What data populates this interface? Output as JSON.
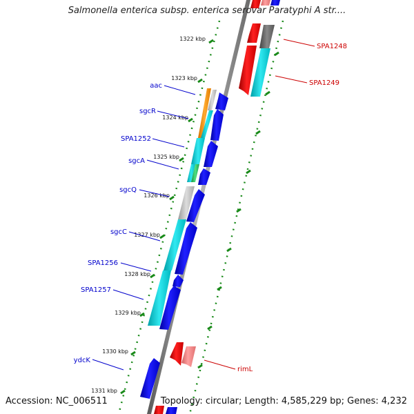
{
  "title": "Salmonella enterica subsp. enterica serovar Paratyphi A str....",
  "accession": "Accession: NC_006511",
  "topology": "Topology: circular; Length: 4,585,229 bp; Genes: 4,232",
  "colors": {
    "forward_gene": "#0000ee",
    "reverse_gene": "#ee0000",
    "rna_gene": "#ff8a80",
    "cds_cyan": "#00c8d0",
    "cds_gray": "#bdbdbd",
    "cds_dark_gray": "#666666",
    "cds_orange": "#ff8c00",
    "cds_green": "#22c55e",
    "backbone": "#8a8a8a",
    "tick_marks": "#1a8a1a",
    "label_blue": "#0000cc",
    "label_red": "#cc0000"
  },
  "ticks": [
    {
      "label": "1322 kbp"
    },
    {
      "label": "1323 kbp"
    },
    {
      "label": "1324 kbp"
    },
    {
      "label": "1325 kbp"
    },
    {
      "label": "1326 kbp"
    },
    {
      "label": "1327 kbp"
    },
    {
      "label": "1328 kbp"
    },
    {
      "label": "1329 kbp"
    },
    {
      "label": "1330 kbp"
    },
    {
      "label": "1331 kbp"
    }
  ],
  "forward_gene_labels": [
    {
      "label": "aac"
    },
    {
      "label": "sgcR"
    },
    {
      "label": "SPA1252"
    },
    {
      "label": "sgcA"
    },
    {
      "label": "sgcQ"
    },
    {
      "label": "sgcC"
    },
    {
      "label": "SPA1256"
    },
    {
      "label": "SPA1257"
    },
    {
      "label": "ydcK"
    }
  ],
  "reverse_gene_labels": [
    {
      "label": "SPA1248"
    },
    {
      "label": "SPA1249"
    },
    {
      "label": "rimL"
    }
  ]
}
